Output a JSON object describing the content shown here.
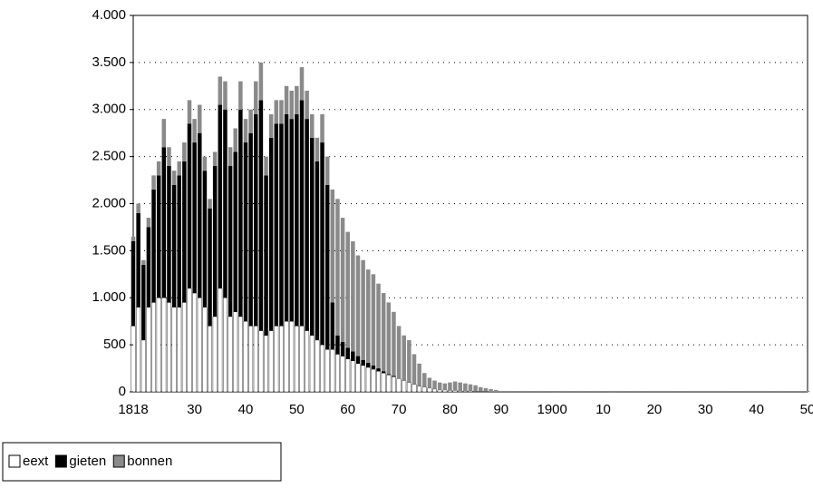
{
  "chart_data": {
    "type": "stacked_bar",
    "categories": [
      "1818",
      null,
      null,
      null,
      null,
      null,
      null,
      null,
      null,
      null,
      null,
      null,
      "30",
      null,
      null,
      null,
      null,
      null,
      null,
      null,
      null,
      null,
      "40",
      null,
      null,
      null,
      null,
      null,
      null,
      null,
      null,
      null,
      "50",
      null,
      null,
      null,
      null,
      null,
      null,
      null,
      null,
      null,
      "60",
      null,
      null,
      null,
      null,
      null,
      null,
      null,
      null,
      null,
      "70",
      null,
      null,
      null,
      null,
      null,
      null,
      null,
      null,
      null,
      "80",
      null,
      null,
      null,
      null,
      null,
      null,
      null,
      null,
      null,
      "90",
      null,
      null,
      null,
      null,
      null,
      null,
      null,
      null,
      null,
      "1900",
      null,
      null,
      null,
      null,
      null,
      null,
      null,
      null,
      null,
      "10",
      null,
      null,
      null,
      null,
      null,
      null,
      null,
      null,
      null,
      "20",
      null,
      null,
      null,
      null,
      null,
      null,
      null,
      null,
      null,
      "30",
      null,
      null,
      null,
      null,
      null,
      null,
      null,
      null,
      null,
      "40",
      null,
      null,
      null,
      null,
      null,
      null,
      null,
      null,
      null,
      "50"
    ],
    "series": [
      {
        "name": "eext",
        "color": "#ffffff",
        "values": [
          700,
          900,
          550,
          900,
          950,
          1000,
          1000,
          950,
          900,
          900,
          950,
          1100,
          1050,
          1000,
          900,
          700,
          800,
          1100,
          1000,
          800,
          850,
          800,
          750,
          700,
          700,
          650,
          600,
          650,
          700,
          700,
          750,
          750,
          700,
          700,
          650,
          600,
          550,
          500,
          450,
          450,
          400,
          380,
          350,
          330,
          300,
          280,
          260,
          240,
          220,
          200,
          180,
          160,
          140,
          120,
          100,
          80,
          60,
          50,
          40,
          30,
          20,
          20,
          15,
          15,
          10,
          10,
          10,
          5,
          5,
          5,
          0,
          0,
          0,
          0,
          0,
          0,
          0,
          0,
          0,
          0,
          0,
          0,
          0,
          0,
          0,
          0,
          0,
          0,
          0,
          0,
          0,
          0,
          0,
          0,
          0,
          0,
          0,
          0,
          0,
          0,
          0,
          0,
          0,
          0,
          0,
          0,
          0,
          0,
          0,
          0,
          0,
          0,
          0,
          0,
          0,
          0,
          0,
          0,
          0,
          0,
          0,
          0,
          0,
          0,
          0,
          0,
          0,
          0,
          0,
          0,
          0,
          0,
          0
        ]
      },
      {
        "name": "gieten",
        "color": "#000000",
        "values": [
          900,
          1000,
          800,
          850,
          1200,
          1300,
          1600,
          1450,
          1300,
          1400,
          1500,
          1750,
          1600,
          1750,
          1450,
          1250,
          1600,
          1950,
          2000,
          1600,
          1700,
          2200,
          1900,
          2050,
          2250,
          2450,
          1700,
          2050,
          2150,
          2150,
          2200,
          2150,
          2250,
          2400,
          2250,
          2100,
          1900,
          2150,
          1750,
          500,
          200,
          150,
          120,
          100,
          80,
          60,
          50,
          40,
          30,
          20,
          10,
          10,
          0,
          0,
          0,
          0,
          0,
          0,
          0,
          0,
          0,
          0,
          0,
          0,
          0,
          0,
          0,
          0,
          0,
          0,
          0,
          0,
          0,
          0,
          0,
          0,
          0,
          0,
          0,
          0,
          0,
          0,
          0,
          0,
          0,
          0,
          0,
          0,
          0,
          0,
          0,
          0,
          0,
          0,
          0,
          0,
          0,
          0,
          0,
          0,
          0,
          0,
          0,
          0,
          0,
          0,
          0,
          0,
          0,
          0,
          0,
          0,
          0,
          0,
          0,
          0,
          0,
          0,
          0,
          0,
          0,
          0,
          0,
          0,
          0,
          0,
          0,
          0,
          0,
          0,
          0,
          0,
          0
        ]
      },
      {
        "name": "bonnen",
        "color": "#8a8a8a",
        "values": [
          50,
          100,
          50,
          100,
          150,
          150,
          300,
          200,
          150,
          150,
          200,
          250,
          250,
          300,
          150,
          100,
          150,
          300,
          300,
          200,
          250,
          300,
          250,
          250,
          350,
          400,
          200,
          250,
          250,
          250,
          300,
          300,
          300,
          350,
          300,
          250,
          250,
          300,
          300,
          1200,
          1450,
          1320,
          1230,
          1170,
          1070,
          1060,
          990,
          970,
          900,
          830,
          760,
          680,
          560,
          480,
          450,
          320,
          240,
          150,
          110,
          90,
          80,
          70,
          85,
          95,
          90,
          80,
          70,
          65,
          45,
          35,
          30,
          20,
          10,
          10,
          10,
          10,
          10,
          10,
          10,
          10,
          10,
          10,
          10,
          10,
          10,
          10,
          10,
          10,
          10,
          10,
          10,
          10,
          10,
          10,
          10,
          10,
          10,
          10,
          10,
          10,
          10,
          10,
          10,
          10,
          10,
          10,
          10,
          10,
          10,
          10,
          10,
          10,
          10,
          10,
          10,
          10,
          10,
          10,
          10,
          10,
          10,
          10,
          10,
          10,
          10,
          10,
          10,
          10,
          10,
          10,
          10,
          10,
          10
        ]
      }
    ],
    "ylim": [
      0,
      4000
    ],
    "yticks": [
      0,
      500,
      {
        "value": 1000,
        "label": "1.000"
      },
      {
        "value": 1500,
        "label": "1.500"
      },
      {
        "value": 2000,
        "label": "2.000"
      },
      {
        "value": 2500,
        "label": "2.500"
      },
      {
        "value": 3000,
        "label": "3.000"
      },
      {
        "value": 3500,
        "label": "3.500"
      },
      {
        "value": 4000,
        "label": "4.000"
      }
    ],
    "grid": true,
    "legend": "bottom-left"
  }
}
